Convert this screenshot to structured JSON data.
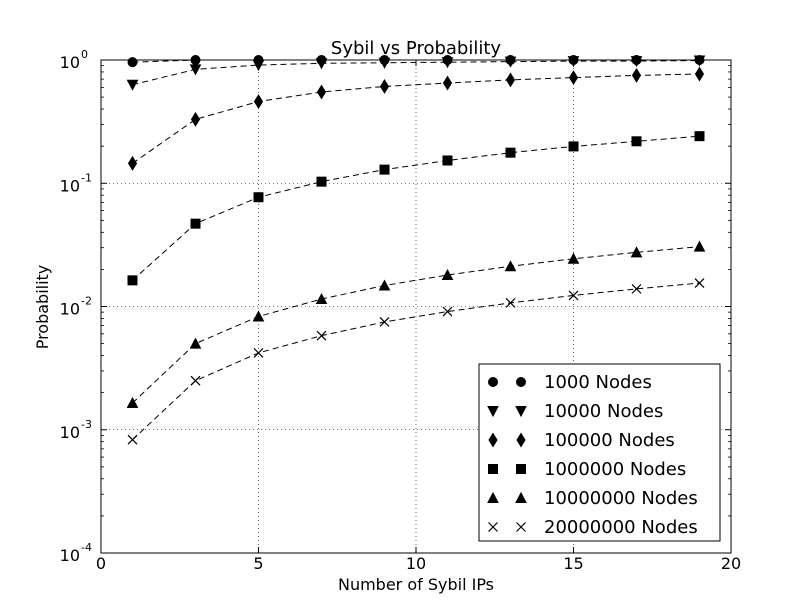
{
  "chart_data": {
    "type": "scatter",
    "title": "Sybil vs Probability",
    "xlabel": "Number of Sybil IPs",
    "ylabel": "Probability",
    "xlim": [
      0,
      20
    ],
    "ylim": [
      0.0001,
      1
    ],
    "yscale": "log",
    "grid": true,
    "legend_placement": "lower-right",
    "x_ticks": [
      {
        "value": 0,
        "label": "0"
      },
      {
        "value": 5,
        "label": "5"
      },
      {
        "value": 10,
        "label": "10"
      },
      {
        "value": 15,
        "label": "15"
      },
      {
        "value": 20,
        "label": "20"
      }
    ],
    "y_ticks": [
      {
        "value": 1,
        "base": "10",
        "exp": "0"
      },
      {
        "value": 0.1,
        "base": "10",
        "exp": "-1"
      },
      {
        "value": 0.01,
        "base": "10",
        "exp": "-2"
      },
      {
        "value": 0.001,
        "base": "10",
        "exp": "-3"
      },
      {
        "value": 0.0001,
        "base": "10",
        "exp": "-4"
      }
    ],
    "x": [
      1,
      3,
      5,
      7,
      9,
      11,
      13,
      15,
      17,
      19
    ],
    "series": [
      {
        "name": "1000 Nodes",
        "marker": "circle",
        "values": [
          0.96,
          1.0,
          1.0,
          1.0,
          1.0,
          1.0,
          1.0,
          1.0,
          1.0,
          1.0
        ]
      },
      {
        "name": "10000 Nodes",
        "marker": "triangle-down",
        "values": [
          0.63,
          0.84,
          0.91,
          0.94,
          0.95,
          0.96,
          0.97,
          0.98,
          0.98,
          0.99
        ]
      },
      {
        "name": "100000 Nodes",
        "marker": "diamond",
        "values": [
          0.145,
          0.33,
          0.46,
          0.55,
          0.61,
          0.65,
          0.69,
          0.72,
          0.75,
          0.77
        ]
      },
      {
        "name": "1000000 Nodes",
        "marker": "square",
        "values": [
          0.0163,
          0.047,
          0.077,
          0.103,
          0.129,
          0.153,
          0.177,
          0.199,
          0.219,
          0.241
        ]
      },
      {
        "name": "10000000 Nodes",
        "marker": "triangle-up",
        "values": [
          0.00165,
          0.005,
          0.0083,
          0.0115,
          0.0148,
          0.018,
          0.0212,
          0.0244,
          0.0275,
          0.0306
        ]
      },
      {
        "name": "20000000 Nodes",
        "marker": "x",
        "values": [
          0.00083,
          0.0025,
          0.0042,
          0.0058,
          0.0075,
          0.0091,
          0.0107,
          0.0123,
          0.0139,
          0.0155
        ]
      }
    ]
  }
}
